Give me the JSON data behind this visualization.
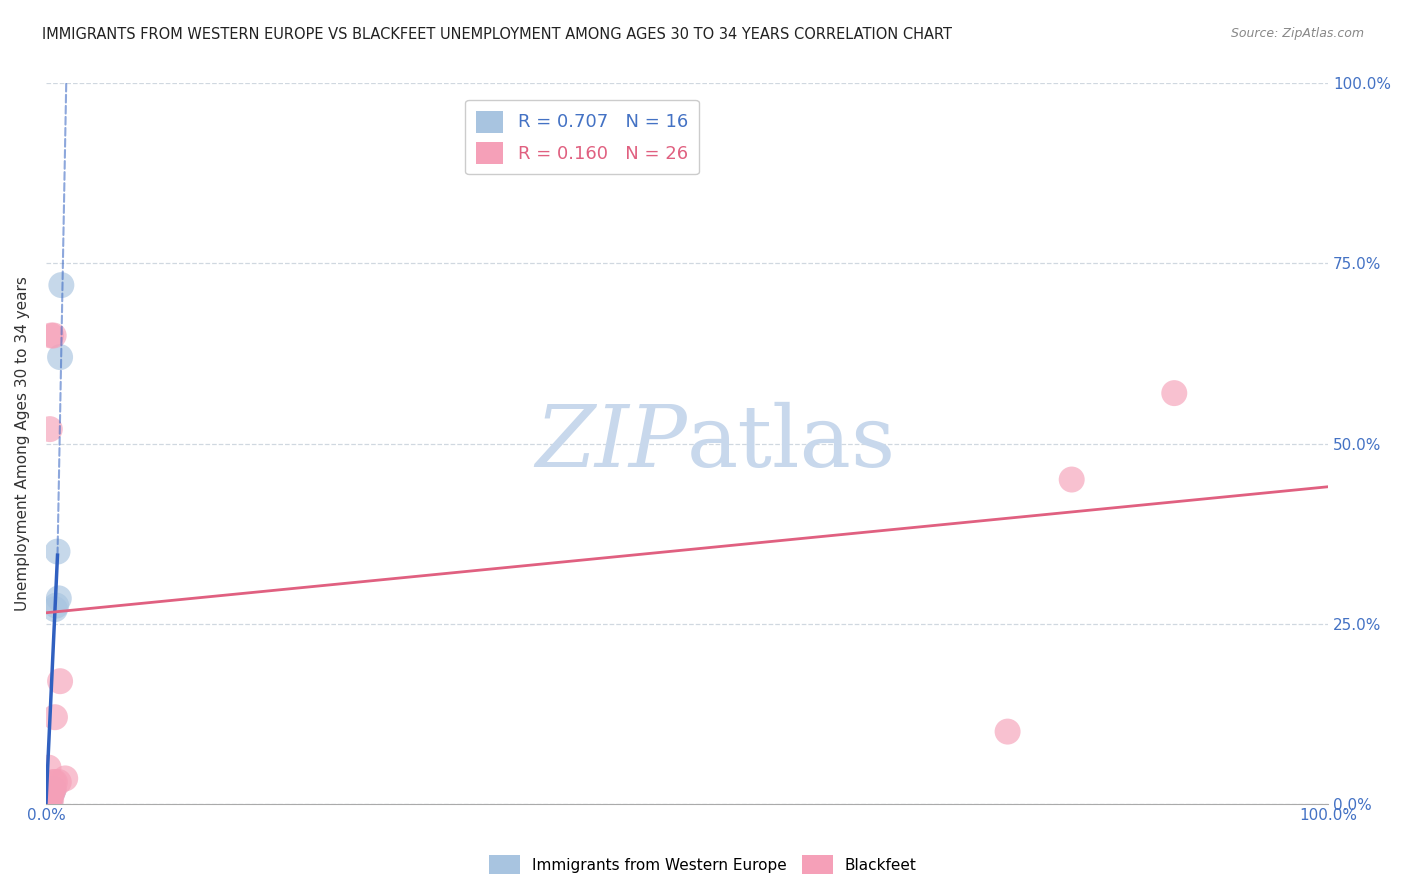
{
  "title": "IMMIGRANTS FROM WESTERN EUROPE VS BLACKFEET UNEMPLOYMENT AMONG AGES 30 TO 34 YEARS CORRELATION CHART",
  "source": "Source: ZipAtlas.com",
  "ylabel": "Unemployment Among Ages 30 to 34 years",
  "xlim": [
    0,
    1.0
  ],
  "ylim": [
    0,
    1.0
  ],
  "xtick_positions": [
    0.0,
    0.25,
    0.5,
    0.75,
    1.0
  ],
  "xtick_labels_bottom": [
    "0.0%",
    "",
    "",
    "",
    "100.0%"
  ],
  "ytick_positions": [
    0.0,
    0.25,
    0.5,
    0.75,
    1.0
  ],
  "ytick_labels_right": [
    "0.0%",
    "25.0%",
    "50.0%",
    "75.0%",
    "100.0%"
  ],
  "background_color": "#ffffff",
  "grid_color": "#d0d8e0",
  "blue_color": "#a8c4e0",
  "pink_color": "#f5a0b8",
  "blue_line_color": "#3060c0",
  "pink_line_color": "#e06080",
  "legend_r_blue": "0.707",
  "legend_n_blue": "16",
  "legend_r_pink": "0.160",
  "legend_n_pink": "26",
  "legend_label_blue": "Immigrants from Western Europe",
  "legend_label_pink": "Blackfeet",
  "blue_points": [
    [
      0.001,
      0.002
    ],
    [
      0.001,
      0.003
    ],
    [
      0.002,
      0.002
    ],
    [
      0.002,
      0.003
    ],
    [
      0.003,
      0.002
    ],
    [
      0.003,
      0.003
    ],
    [
      0.004,
      0.015
    ],
    [
      0.004,
      0.02
    ],
    [
      0.005,
      0.015
    ],
    [
      0.006,
      0.02
    ],
    [
      0.007,
      0.27
    ],
    [
      0.008,
      0.275
    ],
    [
      0.009,
      0.35
    ],
    [
      0.01,
      0.285
    ],
    [
      0.011,
      0.62
    ],
    [
      0.012,
      0.72
    ]
  ],
  "pink_points": [
    [
      0.001,
      0.001
    ],
    [
      0.001,
      0.003
    ],
    [
      0.001,
      0.005
    ],
    [
      0.002,
      0.001
    ],
    [
      0.002,
      0.005
    ],
    [
      0.002,
      0.01
    ],
    [
      0.002,
      0.05
    ],
    [
      0.003,
      0.005
    ],
    [
      0.003,
      0.01
    ],
    [
      0.003,
      0.52
    ],
    [
      0.004,
      0.005
    ],
    [
      0.004,
      0.015
    ],
    [
      0.004,
      0.65
    ],
    [
      0.005,
      0.015
    ],
    [
      0.005,
      0.02
    ],
    [
      0.006,
      0.02
    ],
    [
      0.006,
      0.03
    ],
    [
      0.006,
      0.65
    ],
    [
      0.007,
      0.03
    ],
    [
      0.007,
      0.12
    ],
    [
      0.01,
      0.03
    ],
    [
      0.011,
      0.17
    ],
    [
      0.015,
      0.035
    ],
    [
      0.75,
      0.1
    ],
    [
      0.8,
      0.45
    ],
    [
      0.88,
      0.57
    ]
  ],
  "blue_line_solid": {
    "x0": 0.0,
    "y0": 0.0,
    "x1": 0.009,
    "y1": 0.345
  },
  "blue_line_dash": {
    "x0": 0.009,
    "y0": 0.345,
    "x1": 0.016,
    "y1": 1.02
  },
  "pink_line": {
    "x0": 0.0,
    "y0": 0.265,
    "x1": 1.0,
    "y1": 0.44
  },
  "watermark_line1": "ZIP",
  "watermark_line2": "atlas",
  "watermark_color": "#c8d8ec",
  "watermark_fontsize": 62
}
